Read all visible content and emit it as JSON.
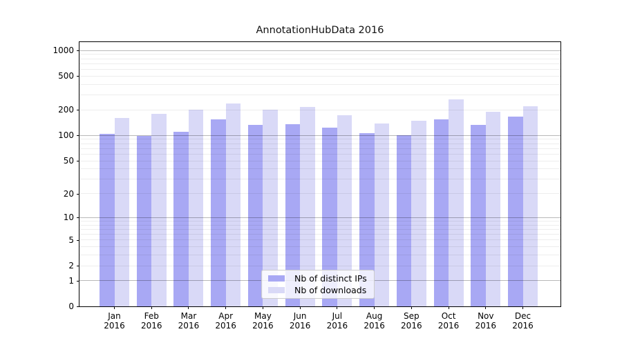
{
  "chart_data": {
    "type": "bar",
    "title": "AnnotationHubData 2016",
    "categories": [
      "Jan",
      "Feb",
      "Mar",
      "Apr",
      "May",
      "Jun",
      "Jul",
      "Aug",
      "Sep",
      "Oct",
      "Nov",
      "Dec"
    ],
    "x_tick_year": "2016",
    "series": [
      {
        "name": "Nb of distinct IPs",
        "color": "#a8a8f4",
        "values": [
          104,
          99,
          110,
          155,
          133,
          136,
          124,
          106,
          100,
          156,
          133,
          167
        ]
      },
      {
        "name": "Nb of downloads",
        "color": "#d9d9f7",
        "values": [
          160,
          181,
          200,
          237,
          200,
          218,
          174,
          138,
          150,
          267,
          192,
          221
        ]
      }
    ],
    "y_scale": "log1p",
    "y_ticks": [
      0,
      1,
      2,
      5,
      10,
      20,
      50,
      100,
      200,
      500,
      1000
    ],
    "ylim": [
      0,
      1258
    ],
    "grid": true,
    "grid_major_values": [
      1,
      10,
      100,
      1000
    ],
    "legend_position": "lower center",
    "xlabel": "",
    "ylabel": ""
  }
}
